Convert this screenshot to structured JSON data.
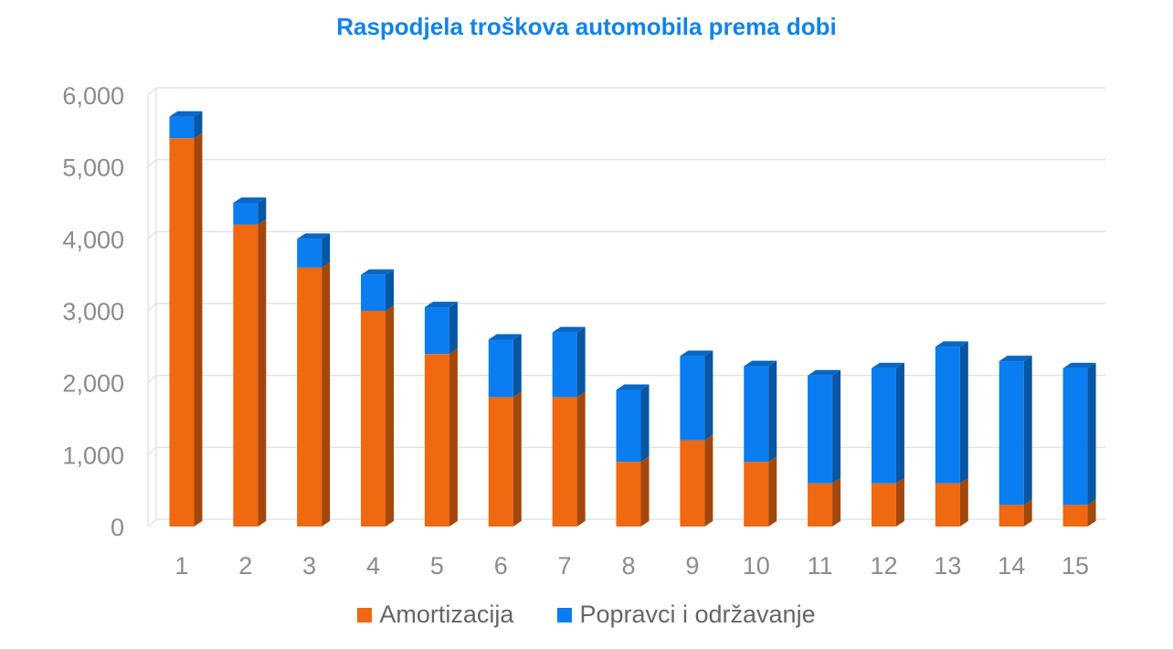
{
  "chart_data": {
    "type": "bar",
    "stacked": true,
    "three_d": true,
    "title": "Raspodjela troškova automobila prema dobi",
    "xlabel": "",
    "ylabel": "",
    "categories": [
      "1",
      "2",
      "3",
      "4",
      "5",
      "6",
      "7",
      "8",
      "9",
      "10",
      "11",
      "12",
      "13",
      "14",
      "15"
    ],
    "series": [
      {
        "name": "Amortizacija",
        "color": "#f0680f",
        "values": [
          5400,
          4200,
          3600,
          3000,
          2400,
          1800,
          1800,
          900,
          1200,
          900,
          600,
          600,
          600,
          300,
          300
        ]
      },
      {
        "name": "Popravci i održavanje",
        "color": "#0a7ef0",
        "values": [
          300,
          300,
          400,
          500,
          650,
          800,
          900,
          1000,
          1170,
          1330,
          1500,
          1600,
          1900,
          2000,
          1900
        ]
      }
    ],
    "ylim": [
      0,
      6000
    ],
    "yticks": [
      "0",
      "1,000",
      "2,000",
      "3,000",
      "4,000",
      "5,000",
      "6,000"
    ],
    "ytick_values": [
      0,
      1000,
      2000,
      3000,
      4000,
      5000,
      6000
    ],
    "grid": true,
    "legend_position": "bottom"
  }
}
